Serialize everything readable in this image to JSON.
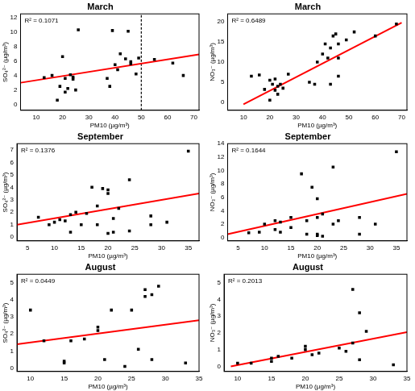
{
  "chart_data": [
    {
      "type": "scatter",
      "title": "March",
      "x_label": "PM10 (µg/m³)",
      "y_label": "SO₄²⁻ (µg/m³)",
      "annotation": "R² = 0.1071",
      "xlim": [
        4,
        72
      ],
      "xticks": [
        10,
        20,
        30,
        40,
        50,
        60,
        70
      ],
      "ylim": [
        -0.8,
        12.5
      ],
      "yticks": [
        0,
        2,
        4,
        6,
        8,
        10,
        12
      ],
      "grid": false,
      "legend": "none",
      "series": [
        {
          "type": "scatter",
          "marker": "square",
          "color": "#000000",
          "x": [
            13,
            16,
            18,
            19,
            20,
            21,
            21,
            22,
            23,
            24,
            24,
            25,
            26,
            37,
            38,
            39,
            40,
            41,
            42,
            44,
            45,
            46,
            46,
            48,
            49,
            55,
            62,
            66
          ],
          "values": [
            3.7,
            4.0,
            0.6,
            2.5,
            6.6,
            3.6,
            1.7,
            2.2,
            4.1,
            3.5,
            3.8,
            2.0,
            10.3,
            3.6,
            2.5,
            10.2,
            5.5,
            4.8,
            7.0,
            6.3,
            10.1,
            5.9,
            5.6,
            4.2,
            6.4,
            6.2,
            5.7,
            4.0
          ]
        },
        {
          "type": "line",
          "color": "#ff0000",
          "x": [
            4,
            72
          ],
          "values": [
            3.0,
            6.9
          ]
        },
        {
          "type": "line",
          "line_style": "dashed",
          "color": "#000000",
          "x": [
            50,
            50
          ],
          "values": [
            -0.8,
            12.5
          ]
        }
      ]
    },
    {
      "type": "scatter",
      "title": "March",
      "x_label": "PM10 (µg/m³)",
      "y_label": "NO₃⁻ (µg/m³)",
      "annotation": "R² = 0.6489",
      "xlim": [
        4,
        72
      ],
      "xticks": [
        10,
        20,
        30,
        40,
        50,
        60,
        70
      ],
      "ylim": [
        -2,
        22
      ],
      "yticks": [
        0,
        5,
        10,
        15,
        20
      ],
      "grid": false,
      "legend": "none",
      "series": [
        {
          "type": "scatter",
          "marker": "square",
          "color": "#000000",
          "x": [
            13,
            16,
            18,
            20,
            20,
            21,
            22,
            22,
            23,
            23,
            24,
            25,
            27,
            35,
            37,
            38,
            40,
            41,
            42,
            43,
            43,
            44,
            45,
            46,
            46,
            49,
            52,
            60,
            68,
            46
          ],
          "values": [
            6.5,
            6.8,
            3.2,
            5.5,
            0.5,
            4.5,
            5.8,
            3.0,
            2.0,
            4.0,
            4.5,
            3.5,
            7.0,
            5.0,
            4.5,
            10.0,
            12.0,
            14.5,
            11.0,
            4.5,
            13.5,
            16.5,
            17.0,
            6.5,
            14.5,
            15.5,
            17.5,
            16.5,
            19.5,
            11.0
          ]
        },
        {
          "type": "line",
          "color": "#ff0000",
          "x": [
            10,
            70
          ],
          "values": [
            -0.5,
            19.8
          ]
        }
      ]
    },
    {
      "type": "scatter",
      "title": "September",
      "x_label": "PM10 (µg/m³)",
      "y_label": "SO₄²⁻ (µg/m³)",
      "annotation": "R² = 0.1376",
      "xlim": [
        3,
        37
      ],
      "xticks": [
        5,
        10,
        15,
        20,
        25,
        30,
        35
      ],
      "ylim": [
        -0.3,
        7.5
      ],
      "yticks": [
        0,
        1,
        2,
        3,
        4,
        5,
        6,
        7
      ],
      "grid": false,
      "legend": "none",
      "series": [
        {
          "type": "scatter",
          "marker": "square",
          "color": "#000000",
          "x": [
            7,
            9,
            10,
            11,
            12,
            13,
            13,
            14,
            15,
            16,
            17,
            18,
            18,
            19,
            20,
            20,
            20,
            21,
            21,
            22,
            24,
            24,
            28,
            28,
            31,
            35
          ],
          "values": [
            1.6,
            1.0,
            1.2,
            1.4,
            1.3,
            0.4,
            1.8,
            2.0,
            1.0,
            1.9,
            4.0,
            1.0,
            2.5,
            3.9,
            3.5,
            0.3,
            3.8,
            0.4,
            1.5,
            2.3,
            4.6,
            0.5,
            1.7,
            1.0,
            1.2,
            6.9
          ]
        },
        {
          "type": "line",
          "color": "#ff0000",
          "x": [
            3,
            37
          ],
          "values": [
            1.0,
            3.5
          ]
        }
      ]
    },
    {
      "type": "scatter",
      "title": "September",
      "x_label": "PM10 (µg/m³)",
      "y_label": "NO₃⁻ (µg/m³)",
      "annotation": "R² = 0.1644",
      "xlim": [
        3,
        37
      ],
      "xticks": [
        5,
        10,
        15,
        20,
        25,
        30,
        35
      ],
      "ylim": [
        -0.5,
        14
      ],
      "yticks": [
        0,
        2,
        4,
        6,
        8,
        10,
        12,
        14
      ],
      "grid": false,
      "legend": "none",
      "series": [
        {
          "type": "scatter",
          "marker": "square",
          "color": "#000000",
          "x": [
            7,
            9,
            10,
            12,
            12,
            13,
            13,
            15,
            15,
            17,
            18,
            18,
            19,
            20,
            20,
            20,
            20,
            21,
            21,
            23,
            23,
            24,
            28,
            28,
            31,
            35
          ],
          "values": [
            0.7,
            0.8,
            2.0,
            2.5,
            1.2,
            0.8,
            2.3,
            3.0,
            1.5,
            9.5,
            2.5,
            0.5,
            7.5,
            0.5,
            3.0,
            0.3,
            5.8,
            3.5,
            0.2,
            10.5,
            2.0,
            2.5,
            3.0,
            0.5,
            2.0,
            12.8
          ]
        },
        {
          "type": "line",
          "color": "#ff0000",
          "x": [
            3,
            37
          ],
          "values": [
            0.5,
            6.5
          ]
        }
      ]
    },
    {
      "type": "scatter",
      "title": "August",
      "x_label": "PM10 (µg/m³)",
      "y_label": "SO₄²⁻ (µg/m³)",
      "annotation": "R² = 0.0449",
      "xlim": [
        8,
        35
      ],
      "xticks": [
        10,
        15,
        20,
        25,
        30,
        35
      ],
      "ylim": [
        -0.2,
        5.5
      ],
      "yticks": [
        0,
        1,
        2,
        3,
        4,
        5
      ],
      "grid": false,
      "legend": "none",
      "series": [
        {
          "type": "scatter",
          "marker": "square",
          "color": "#000000",
          "x": [
            10,
            12,
            15,
            15,
            16,
            18,
            20,
            20,
            21,
            22,
            24,
            25,
            26,
            27,
            27,
            28,
            28,
            29,
            33
          ],
          "values": [
            3.4,
            1.6,
            0.4,
            0.3,
            1.6,
            1.7,
            2.2,
            2.4,
            0.5,
            3.4,
            0.1,
            3.4,
            1.1,
            4.6,
            4.2,
            4.3,
            0.5,
            4.8,
            0.3
          ]
        },
        {
          "type": "line",
          "color": "#ff0000",
          "x": [
            8,
            35
          ],
          "values": [
            1.4,
            2.8
          ]
        }
      ]
    },
    {
      "type": "scatter",
      "title": "August",
      "x_label": "PM10 (µg/m³)",
      "y_label": "NO₃⁻ (µg/m³)",
      "annotation": "R² = 0.2013",
      "xlim": [
        8,
        35
      ],
      "xticks": [
        10,
        15,
        20,
        25,
        30,
        35
      ],
      "ylim": [
        -0.3,
        5.5
      ],
      "yticks": [
        0,
        1,
        2,
        3,
        4,
        5
      ],
      "grid": false,
      "legend": "none",
      "series": [
        {
          "type": "scatter",
          "marker": "square",
          "color": "#000000",
          "x": [
            10,
            12,
            15,
            15,
            16,
            18,
            20,
            20,
            21,
            22,
            25,
            26,
            27,
            27,
            28,
            28,
            29,
            33
          ],
          "values": [
            0.2,
            0.2,
            0.3,
            0.5,
            0.6,
            0.5,
            1.0,
            1.2,
            0.7,
            0.8,
            1.1,
            0.9,
            1.4,
            4.6,
            3.2,
            0.4,
            2.1,
            0.1
          ]
        },
        {
          "type": "line",
          "color": "#ff0000",
          "x": [
            9,
            35
          ],
          "values": [
            0.0,
            2.05
          ]
        }
      ]
    }
  ]
}
